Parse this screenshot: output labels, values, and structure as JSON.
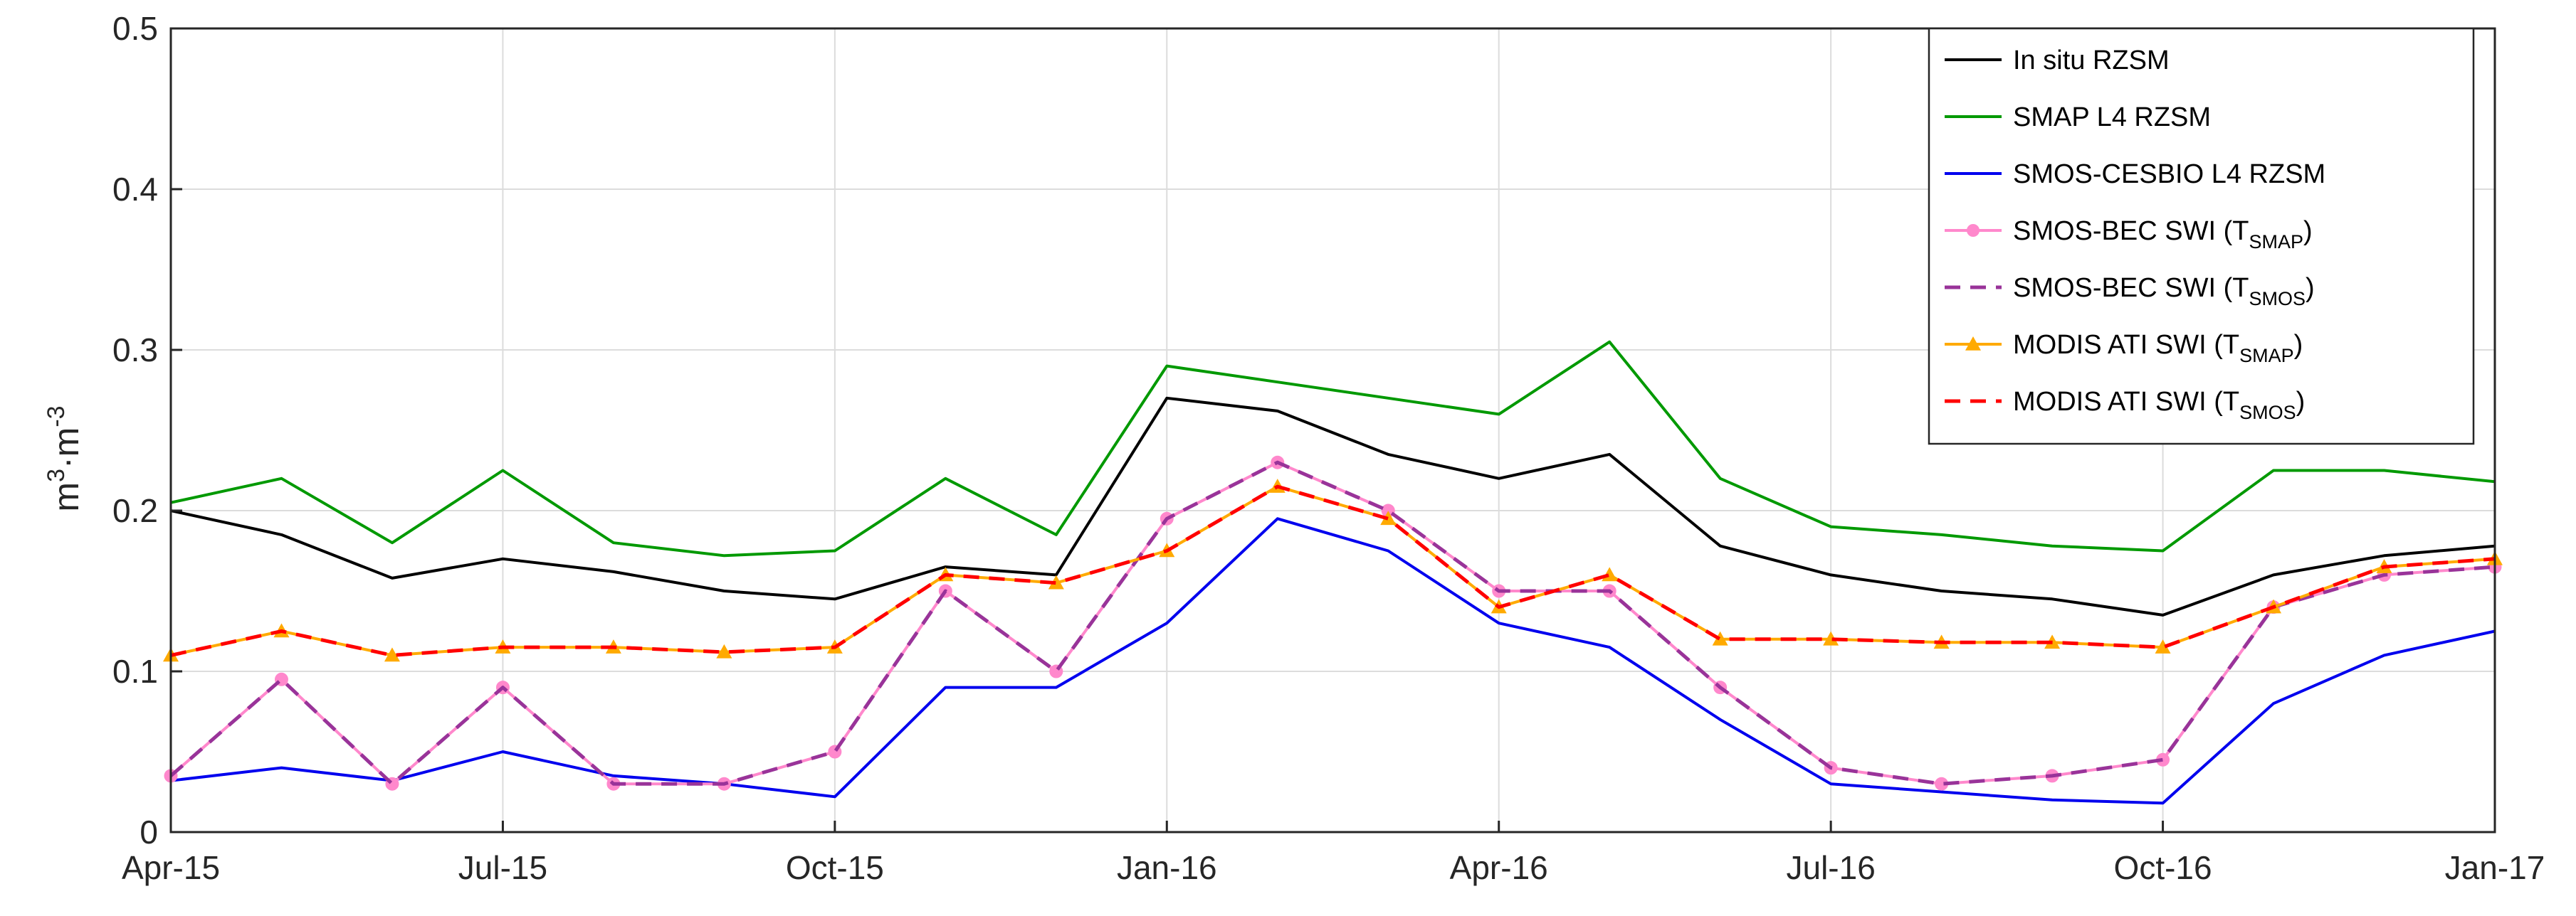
{
  "chart_data": {
    "type": "line",
    "x_ticks": [
      "Apr-15",
      "Jul-15",
      "Oct-15",
      "Jan-16",
      "Apr-16",
      "Jul-16",
      "Oct-16",
      "Jan-17"
    ],
    "y_ticks": [
      "0",
      "0.1",
      "0.2",
      "0.3",
      "0.4",
      "0.5"
    ],
    "ylabel": {
      "base1": "m",
      "exp1": "3",
      "mid": "·m",
      "exp2": "-3"
    },
    "ylim": [
      0,
      0.5
    ],
    "grid": true,
    "legend_position": "top-right",
    "series": [
      {
        "name": "In situ RZSM",
        "legend": {
          "main": "In situ RZSM",
          "sub": "",
          "tail": ""
        },
        "color": "#000000",
        "style": "solid",
        "marker": "none",
        "points": [
          [
            "Apr-15",
            0.2
          ],
          [
            "May-15",
            0.185
          ],
          [
            "Jun-15",
            0.158
          ],
          [
            "Jul-15",
            0.17
          ],
          [
            "Aug-15",
            0.162
          ],
          [
            "Sep-15",
            0.15
          ],
          [
            "Oct-15",
            0.145
          ],
          [
            "Nov-15",
            0.165
          ],
          [
            "Dec-15",
            0.16
          ],
          [
            "Jan-16",
            0.27
          ],
          [
            "Feb-16",
            0.262
          ],
          [
            "Mar-16",
            0.235
          ],
          [
            "Apr-16",
            0.22
          ],
          [
            "May-16",
            0.235
          ],
          [
            "Jun-16",
            0.178
          ],
          [
            "Jul-16",
            0.16
          ],
          [
            "Aug-16",
            0.15
          ],
          [
            "Sep-16",
            0.145
          ],
          [
            "Oct-16",
            0.135
          ],
          [
            "Nov-16",
            0.16
          ],
          [
            "Dec-16",
            0.172
          ],
          [
            "Jan-17",
            0.178
          ]
        ]
      },
      {
        "name": "SMAP L4 RZSM",
        "legend": {
          "main": "SMAP L4 RZSM",
          "sub": "",
          "tail": ""
        },
        "color": "#009900",
        "style": "solid",
        "marker": "none",
        "points": [
          [
            "Apr-15",
            0.205
          ],
          [
            "May-15",
            0.22
          ],
          [
            "Jun-15",
            0.18
          ],
          [
            "Jul-15",
            0.225
          ],
          [
            "Aug-15",
            0.18
          ],
          [
            "Sep-15",
            0.172
          ],
          [
            "Oct-15",
            0.175
          ],
          [
            "Nov-15",
            0.22
          ],
          [
            "Dec-15",
            0.185
          ],
          [
            "Jan-16",
            0.29
          ],
          [
            "Feb-16",
            0.28
          ],
          [
            "Mar-16",
            0.27
          ],
          [
            "Apr-16",
            0.26
          ],
          [
            "May-16",
            0.305
          ],
          [
            "Jun-16",
            0.22
          ],
          [
            "Jul-16",
            0.19
          ],
          [
            "Aug-16",
            0.185
          ],
          [
            "Sep-16",
            0.178
          ],
          [
            "Oct-16",
            0.175
          ],
          [
            "Nov-16",
            0.225
          ],
          [
            "Dec-16",
            0.225
          ],
          [
            "Jan-17",
            0.218
          ]
        ]
      },
      {
        "name": "SMOS-CESBIO L4 RZSM",
        "legend": {
          "main": "SMOS-CESBIO L4 RZSM",
          "sub": "",
          "tail": ""
        },
        "color": "#0000ee",
        "style": "solid",
        "marker": "none",
        "points": [
          [
            "Apr-15",
            0.032
          ],
          [
            "May-15",
            0.04
          ],
          [
            "Jun-15",
            0.032
          ],
          [
            "Jul-15",
            0.05
          ],
          [
            "Aug-15",
            0.035
          ],
          [
            "Sep-15",
            0.03
          ],
          [
            "Oct-15",
            0.022
          ],
          [
            "Nov-15",
            0.09
          ],
          [
            "Dec-15",
            0.09
          ],
          [
            "Jan-16",
            0.13
          ],
          [
            "Feb-16",
            0.195
          ],
          [
            "Mar-16",
            0.175
          ],
          [
            "Apr-16",
            0.13
          ],
          [
            "May-16",
            0.115
          ],
          [
            "Jun-16",
            0.07
          ],
          [
            "Jul-16",
            0.03
          ],
          [
            "Aug-16",
            0.025
          ],
          [
            "Sep-16",
            0.02
          ],
          [
            "Oct-16",
            0.018
          ],
          [
            "Nov-16",
            0.08
          ],
          [
            "Dec-16",
            0.11
          ],
          [
            "Jan-17",
            0.125
          ]
        ]
      },
      {
        "name": "SMOS-BEC SWI (T_SMAP)",
        "legend": {
          "main": "SMOS-BEC SWI (T",
          "sub": "SMAP",
          "tail": ")"
        },
        "color": "#ff88cc",
        "style": "solid",
        "marker": "circle",
        "points": [
          [
            "Apr-15",
            0.035
          ],
          [
            "May-15",
            0.095
          ],
          [
            "Jun-15",
            0.03
          ],
          [
            "Jul-15",
            0.09
          ],
          [
            "Aug-15",
            0.03
          ],
          [
            "Sep-15",
            0.03
          ],
          [
            "Oct-15",
            0.05
          ],
          [
            "Nov-15",
            0.15
          ],
          [
            "Dec-15",
            0.1
          ],
          [
            "Jan-16",
            0.195
          ],
          [
            "Feb-16",
            0.23
          ],
          [
            "Mar-16",
            0.2
          ],
          [
            "Apr-16",
            0.15
          ],
          [
            "May-16",
            0.15
          ],
          [
            "Jun-16",
            0.09
          ],
          [
            "Jul-16",
            0.04
          ],
          [
            "Aug-16",
            0.03
          ],
          [
            "Sep-16",
            0.035
          ],
          [
            "Oct-16",
            0.045
          ],
          [
            "Nov-16",
            0.14
          ],
          [
            "Dec-16",
            0.16
          ],
          [
            "Jan-17",
            0.165
          ]
        ]
      },
      {
        "name": "SMOS-BEC SWI (T_SMOS)",
        "legend": {
          "main": "SMOS-BEC SWI (T",
          "sub": "SMOS",
          "tail": ")"
        },
        "color": "#993399",
        "style": "dashed",
        "marker": "none",
        "points": [
          [
            "Apr-15",
            0.035
          ],
          [
            "May-15",
            0.095
          ],
          [
            "Jun-15",
            0.03
          ],
          [
            "Jul-15",
            0.09
          ],
          [
            "Aug-15",
            0.03
          ],
          [
            "Sep-15",
            0.03
          ],
          [
            "Oct-15",
            0.05
          ],
          [
            "Nov-15",
            0.15
          ],
          [
            "Dec-15",
            0.1
          ],
          [
            "Jan-16",
            0.195
          ],
          [
            "Feb-16",
            0.23
          ],
          [
            "Mar-16",
            0.2
          ],
          [
            "Apr-16",
            0.15
          ],
          [
            "May-16",
            0.15
          ],
          [
            "Jun-16",
            0.09
          ],
          [
            "Jul-16",
            0.04
          ],
          [
            "Aug-16",
            0.03
          ],
          [
            "Sep-16",
            0.035
          ],
          [
            "Oct-16",
            0.045
          ],
          [
            "Nov-16",
            0.14
          ],
          [
            "Dec-16",
            0.16
          ],
          [
            "Jan-17",
            0.165
          ]
        ]
      },
      {
        "name": "MODIS ATI SWI (T_SMAP)",
        "legend": {
          "main": "MODIS ATI SWI (T",
          "sub": "SMAP",
          "tail": ")"
        },
        "color": "#ffaa00",
        "style": "solid",
        "marker": "triangle",
        "points": [
          [
            "Apr-15",
            0.11
          ],
          [
            "May-15",
            0.125
          ],
          [
            "Jun-15",
            0.11
          ],
          [
            "Jul-15",
            0.115
          ],
          [
            "Aug-15",
            0.115
          ],
          [
            "Sep-15",
            0.112
          ],
          [
            "Oct-15",
            0.115
          ],
          [
            "Nov-15",
            0.16
          ],
          [
            "Dec-15",
            0.155
          ],
          [
            "Jan-16",
            0.175
          ],
          [
            "Feb-16",
            0.215
          ],
          [
            "Mar-16",
            0.195
          ],
          [
            "Apr-16",
            0.14
          ],
          [
            "May-16",
            0.16
          ],
          [
            "Jun-16",
            0.12
          ],
          [
            "Jul-16",
            0.12
          ],
          [
            "Aug-16",
            0.118
          ],
          [
            "Sep-16",
            0.118
          ],
          [
            "Oct-16",
            0.115
          ],
          [
            "Nov-16",
            0.14
          ],
          [
            "Dec-16",
            0.165
          ],
          [
            "Jan-17",
            0.17
          ]
        ]
      },
      {
        "name": "MODIS ATI SWI (T_SMOS)",
        "legend": {
          "main": "MODIS ATI SWI (T",
          "sub": "SMOS",
          "tail": ")"
        },
        "color": "#ff0000",
        "style": "dashed",
        "marker": "none",
        "points": [
          [
            "Apr-15",
            0.11
          ],
          [
            "May-15",
            0.125
          ],
          [
            "Jun-15",
            0.11
          ],
          [
            "Jul-15",
            0.115
          ],
          [
            "Aug-15",
            0.115
          ],
          [
            "Sep-15",
            0.112
          ],
          [
            "Oct-15",
            0.115
          ],
          [
            "Nov-15",
            0.16
          ],
          [
            "Dec-15",
            0.155
          ],
          [
            "Jan-16",
            0.175
          ],
          [
            "Feb-16",
            0.215
          ],
          [
            "Mar-16",
            0.195
          ],
          [
            "Apr-16",
            0.14
          ],
          [
            "May-16",
            0.16
          ],
          [
            "Jun-16",
            0.12
          ],
          [
            "Jul-16",
            0.12
          ],
          [
            "Aug-16",
            0.118
          ],
          [
            "Sep-16",
            0.118
          ],
          [
            "Oct-16",
            0.115
          ],
          [
            "Nov-16",
            0.14
          ],
          [
            "Dec-16",
            0.165
          ],
          [
            "Jan-17",
            0.17
          ]
        ]
      }
    ]
  }
}
